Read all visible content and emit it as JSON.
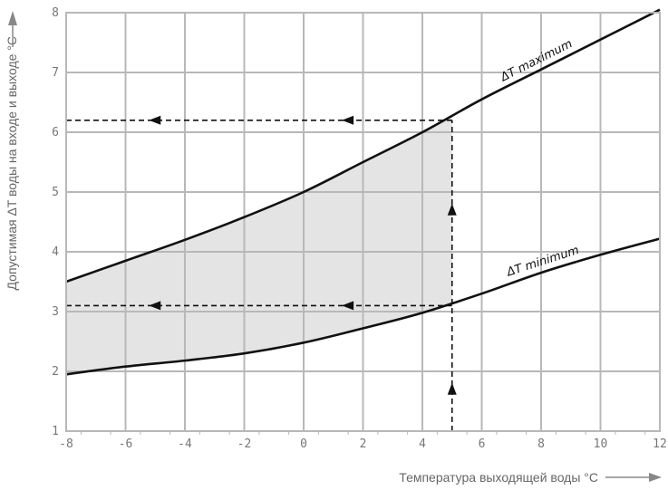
{
  "chart_data": {
    "type": "line",
    "title": "",
    "xlabel": "Температура выходящей воды °C",
    "ylabel": "Допустимая ΔT воды на входе и выходе °C",
    "xlim": [
      -8,
      12
    ],
    "ylim": [
      1,
      8
    ],
    "grid": true,
    "x_ticks": [
      "-8",
      "-6",
      "-4",
      "-2",
      "0",
      "2",
      "4",
      "6",
      "8",
      "10",
      "12"
    ],
    "y_ticks": [
      "1",
      "2",
      "3",
      "4",
      "5",
      "6",
      "7",
      "8"
    ],
    "series": [
      {
        "name": "ΔT maximum",
        "x": [
          -8,
          -6,
          -4,
          -2,
          0,
          2,
          4,
          6,
          8,
          10,
          12
        ],
        "y": [
          3.5,
          3.85,
          4.2,
          4.58,
          5.0,
          5.5,
          6.0,
          6.55,
          7.05,
          7.55,
          8.05
        ]
      },
      {
        "name": "ΔT minimum",
        "x": [
          -8,
          -6,
          -4,
          -2,
          0,
          2,
          4,
          6,
          8,
          10,
          12
        ],
        "y": [
          1.95,
          2.08,
          2.18,
          2.3,
          2.48,
          2.72,
          2.98,
          3.3,
          3.65,
          3.95,
          4.22
        ]
      }
    ],
    "shaded_region": {
      "x_start": -8,
      "x_end": 5,
      "color": "#e4e4e4"
    },
    "annotations": {
      "example_x": 5,
      "example_y_max": 6.2,
      "example_y_min": 3.1
    },
    "colors": {
      "grid": "#b8b8b8",
      "curve": "#111111",
      "dash": "#111111"
    }
  }
}
